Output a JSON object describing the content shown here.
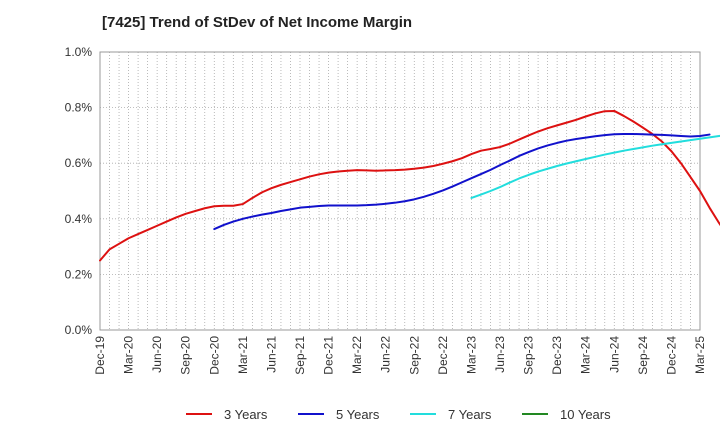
{
  "chart_data": {
    "type": "line",
    "title": "[7425]  Trend of StDev of Net Income Margin",
    "xlabel": "",
    "ylabel": "",
    "x_ticks": [
      "Dec-19",
      "Mar-20",
      "Jun-20",
      "Sep-20",
      "Dec-20",
      "Mar-21",
      "Jun-21",
      "Sep-21",
      "Dec-21",
      "Mar-22",
      "Jun-22",
      "Sep-22",
      "Dec-22",
      "Mar-23",
      "Jun-23",
      "Sep-23",
      "Dec-23",
      "Mar-24",
      "Jun-24",
      "Sep-24",
      "Dec-24",
      "Mar-25"
    ],
    "y_ticks": [
      "0.0%",
      "0.2%",
      "0.4%",
      "0.6%",
      "0.8%",
      "1.0%"
    ],
    "ylim": [
      0,
      1.0
    ],
    "y_unit": "%",
    "grid": true,
    "legend_position": "bottom",
    "series": [
      {
        "name": "3 Years",
        "color": "#dd1111",
        "start_index": 0,
        "values": [
          0.25,
          0.29,
          0.31,
          0.33,
          0.345,
          0.36,
          0.375,
          0.39,
          0.405,
          0.418,
          0.428,
          0.438,
          0.445,
          0.447,
          0.447,
          0.453,
          0.475,
          0.495,
          0.51,
          0.522,
          0.532,
          0.542,
          0.552,
          0.56,
          0.566,
          0.57,
          0.573,
          0.575,
          0.574,
          0.573,
          0.574,
          0.575,
          0.577,
          0.58,
          0.584,
          0.59,
          0.598,
          0.607,
          0.618,
          0.633,
          0.645,
          0.651,
          0.658,
          0.67,
          0.685,
          0.7,
          0.714,
          0.726,
          0.736,
          0.746,
          0.756,
          0.768,
          0.779,
          0.787,
          0.788,
          0.77,
          0.75,
          0.728,
          0.705,
          0.678,
          0.643,
          0.6,
          0.55,
          0.5,
          0.44,
          0.385,
          0.335,
          0.295
        ]
      },
      {
        "name": "5 Years",
        "color": "#1111cc",
        "start_index": 12,
        "values": [
          0.363,
          0.378,
          0.39,
          0.4,
          0.408,
          0.415,
          0.421,
          0.428,
          0.434,
          0.44,
          0.443,
          0.446,
          0.448,
          0.448,
          0.448,
          0.448,
          0.449,
          0.451,
          0.454,
          0.458,
          0.463,
          0.47,
          0.479,
          0.49,
          0.502,
          0.516,
          0.531,
          0.546,
          0.561,
          0.576,
          0.593,
          0.609,
          0.626,
          0.64,
          0.653,
          0.664,
          0.673,
          0.681,
          0.687,
          0.692,
          0.697,
          0.701,
          0.704,
          0.705,
          0.705,
          0.704,
          0.703,
          0.702,
          0.7,
          0.698,
          0.696,
          0.698,
          0.703
        ]
      },
      {
        "name": "7 Years",
        "color": "#22dddd",
        "start_index": 39,
        "values": [
          0.475,
          0.487,
          0.5,
          0.514,
          0.53,
          0.545,
          0.558,
          0.57,
          0.58,
          0.59,
          0.599,
          0.607,
          0.615,
          0.623,
          0.631,
          0.638,
          0.645,
          0.651,
          0.657,
          0.663,
          0.668,
          0.673,
          0.678,
          0.683,
          0.688,
          0.693,
          0.698,
          0.702,
          0.705
        ]
      },
      {
        "name": "10 Years",
        "color": "#228822",
        "start_index": 0,
        "values": []
      }
    ]
  }
}
